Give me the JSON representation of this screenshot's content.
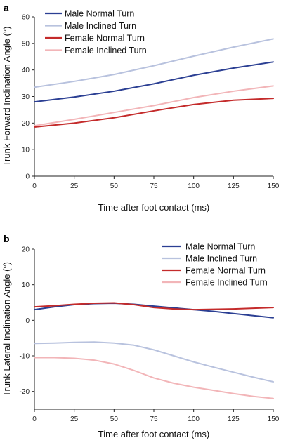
{
  "chart_data": [
    {
      "type": "line",
      "panel_label": "a",
      "xlabel": "Time after foot contact (ms)",
      "ylabel": "Trunk Forward Inclination Angle (°)",
      "xlim": [
        0,
        150
      ],
      "ylim": [
        0,
        60
      ],
      "xticks": [
        0,
        25,
        50,
        75,
        100,
        125,
        150
      ],
      "yticks": [
        0,
        10,
        20,
        30,
        40,
        50,
        60
      ],
      "grid": false,
      "legend_position": "top-left",
      "x": [
        0,
        25,
        50,
        75,
        100,
        125,
        150
      ],
      "series": [
        {
          "name": "Male Normal Turn",
          "color": "#2b3f93",
          "values": [
            28,
            29.8,
            32,
            34.8,
            38,
            40.7,
            43
          ]
        },
        {
          "name": "Male Inclined Turn",
          "color": "#b8c2de",
          "values": [
            33.5,
            35.7,
            38.3,
            41.6,
            45.2,
            48.6,
            51.7
          ]
        },
        {
          "name": "Female Normal Turn",
          "color": "#c42b2b",
          "values": [
            18.5,
            20,
            22,
            24.6,
            27,
            28.6,
            29.3
          ]
        },
        {
          "name": "Female Inclined Turn",
          "color": "#f2b5b8",
          "values": [
            19,
            21.4,
            24,
            26.6,
            29.6,
            32,
            34
          ]
        }
      ]
    },
    {
      "type": "line",
      "panel_label": "b",
      "xlabel": "Time after foot contact (ms)",
      "ylabel": "Trunk Lateral Inclination Angle (°)",
      "xlim": [
        0,
        150
      ],
      "ylim": [
        -25,
        20
      ],
      "xticks": [
        0,
        25,
        50,
        75,
        100,
        125,
        150
      ],
      "yticks": [
        -20,
        -10,
        0,
        10,
        20
      ],
      "grid": false,
      "legend_position": "top-right",
      "x": [
        0,
        12.5,
        25,
        37.5,
        50,
        62.5,
        75,
        87.5,
        100,
        112.5,
        125,
        137.5,
        150
      ],
      "series": [
        {
          "name": "Male Normal Turn",
          "color": "#2b3f93",
          "values": [
            3,
            3.8,
            4.4,
            4.7,
            4.8,
            4.5,
            4,
            3.5,
            3,
            2.5,
            1.9,
            1.3,
            0.7
          ]
        },
        {
          "name": "Male Inclined Turn",
          "color": "#b8c2de",
          "values": [
            -6.5,
            -6.4,
            -6.2,
            -6.1,
            -6.4,
            -7,
            -8.3,
            -10,
            -11.7,
            -13.2,
            -14.6,
            -16,
            -17.3
          ]
        },
        {
          "name": "Female Normal Turn",
          "color": "#c42b2b",
          "values": [
            3.8,
            4.1,
            4.5,
            4.8,
            4.9,
            4.4,
            3.6,
            3.2,
            3,
            3.1,
            3.2,
            3.4,
            3.6
          ]
        },
        {
          "name": "Female Inclined Turn",
          "color": "#f2b5b8",
          "values": [
            -10.5,
            -10.5,
            -10.7,
            -11.2,
            -12.3,
            -14.1,
            -16.2,
            -17.7,
            -18.8,
            -19.7,
            -20.6,
            -21.4,
            -22
          ]
        }
      ]
    }
  ]
}
